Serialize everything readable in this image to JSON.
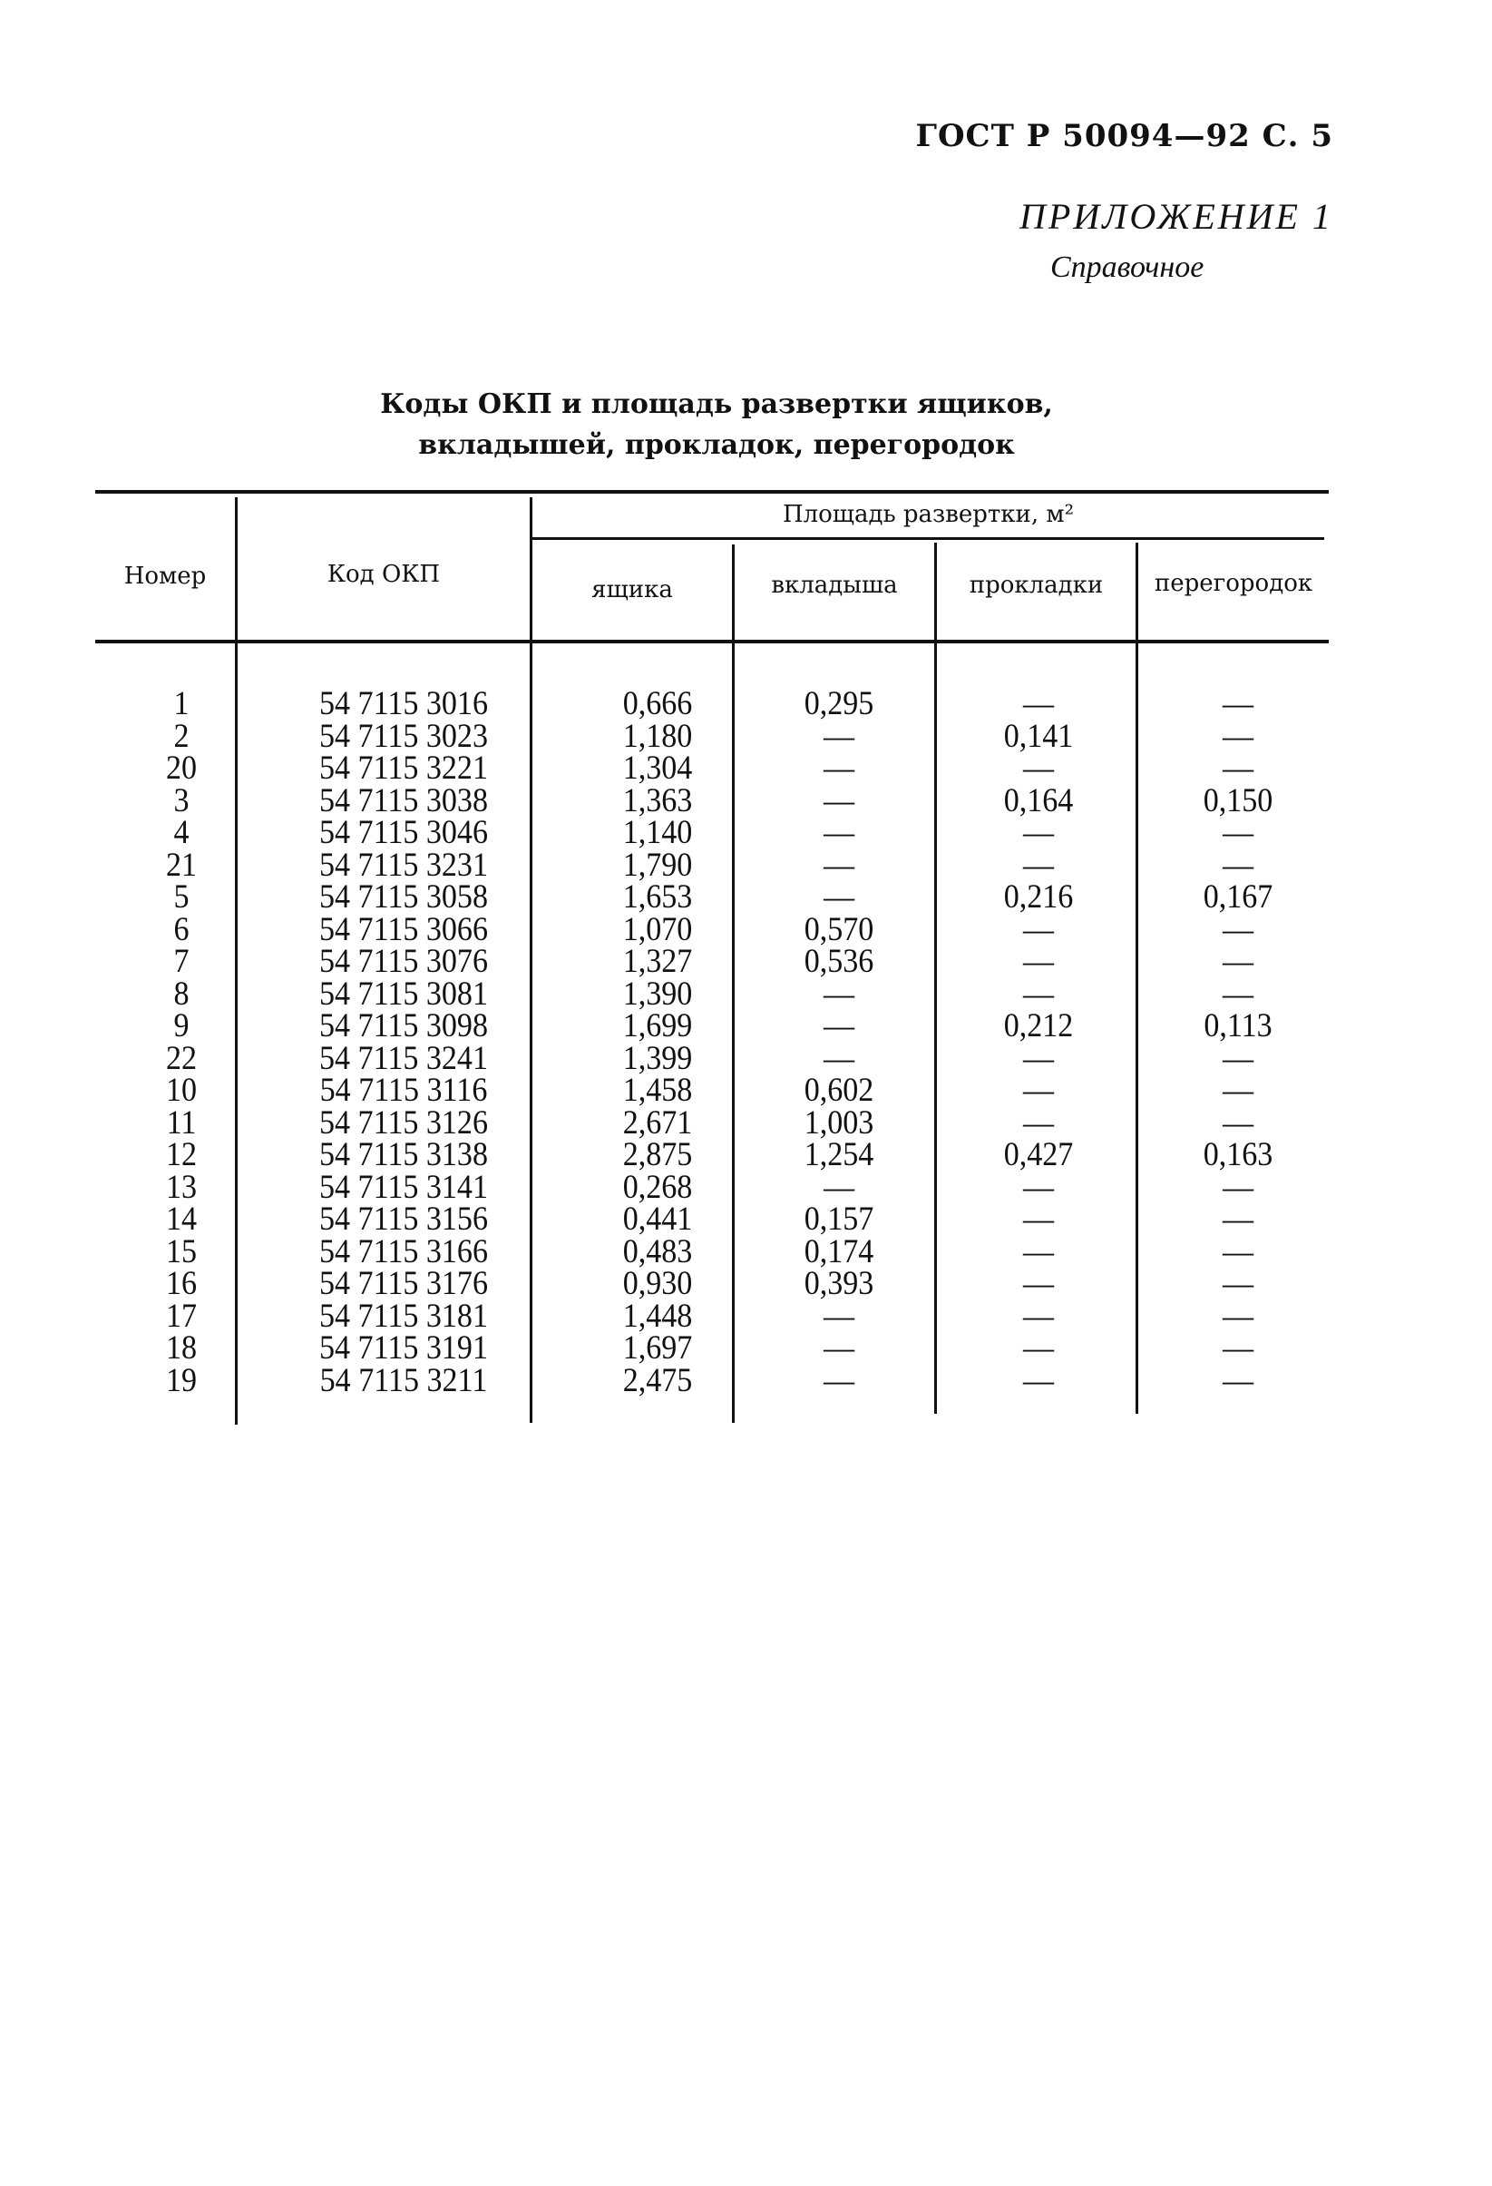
{
  "header": {
    "doc_ref": "ГОСТ Р 50094—92 С. 5",
    "appendix": "ПРИЛОЖЕНИЕ 1",
    "appendix_type": "Справочное"
  },
  "title": {
    "line1": "Коды ОКП и площадь развертки ящиков,",
    "line2": "вкладышей, прокладок, перегородок"
  },
  "table": {
    "columns": {
      "number": "Номер",
      "code": "Код ОКП",
      "area_group": "Площадь развертки, м²",
      "box": "ящика",
      "liner": "вкладыша",
      "pad": "прокладки",
      "partition": "перегородок"
    },
    "rows": [
      [
        "1",
        "54 7115 3016",
        "0,666",
        "0,295",
        "—",
        "—"
      ],
      [
        "2",
        "54 7115 3023",
        "1,180",
        "—",
        "0,141",
        "—"
      ],
      [
        "20",
        "54 7115 3221",
        "1,304",
        "—",
        "—",
        "—"
      ],
      [
        "3",
        "54 7115 3038",
        "1,363",
        "—",
        "0,164",
        "0,150"
      ],
      [
        "4",
        "54 7115 3046",
        "1,140",
        "—",
        "—",
        "—"
      ],
      [
        "21",
        "54 7115 3231",
        "1,790",
        "—",
        "—",
        "—"
      ],
      [
        "5",
        "54 7115 3058",
        "1,653",
        "—",
        "0,216",
        "0,167"
      ],
      [
        "6",
        "54 7115 3066",
        "1,070",
        "0,570",
        "—",
        "—"
      ],
      [
        "7",
        "54 7115 3076",
        "1,327",
        "0,536",
        "—",
        "—"
      ],
      [
        "8",
        "54 7115 3081",
        "1,390",
        "—",
        "—",
        "—"
      ],
      [
        "9",
        "54 7115 3098",
        "1,699",
        "—",
        "0,212",
        "0,113"
      ],
      [
        "22",
        "54 7115 3241",
        "1,399",
        "—",
        "—",
        "—"
      ],
      [
        "10",
        "54 7115 3116",
        "1,458",
        "0,602",
        "—",
        "—"
      ],
      [
        "11",
        "54 7115 3126",
        "2,671",
        "1,003",
        "—",
        "—"
      ],
      [
        "12",
        "54 7115 3138",
        "2,875",
        "1,254",
        "0,427",
        "0,163"
      ],
      [
        "13",
        "54 7115 3141",
        "0,268",
        "—",
        "—",
        "—"
      ],
      [
        "14",
        "54 7115 3156",
        "0,441",
        "0,157",
        "—",
        "—"
      ],
      [
        "15",
        "54 7115 3166",
        "0,483",
        "0,174",
        "—",
        "—"
      ],
      [
        "16",
        "54 7115 3176",
        "0,930",
        "0,393",
        "—",
        "—"
      ],
      [
        "17",
        "54 7115 3181",
        "1,448",
        "—",
        "—",
        "—"
      ],
      [
        "18",
        "54 7115 3191",
        "1,697",
        "—",
        "—",
        "—"
      ],
      [
        "19",
        "54 7115 3211",
        "2,475",
        "—",
        "—",
        "—"
      ]
    ]
  }
}
